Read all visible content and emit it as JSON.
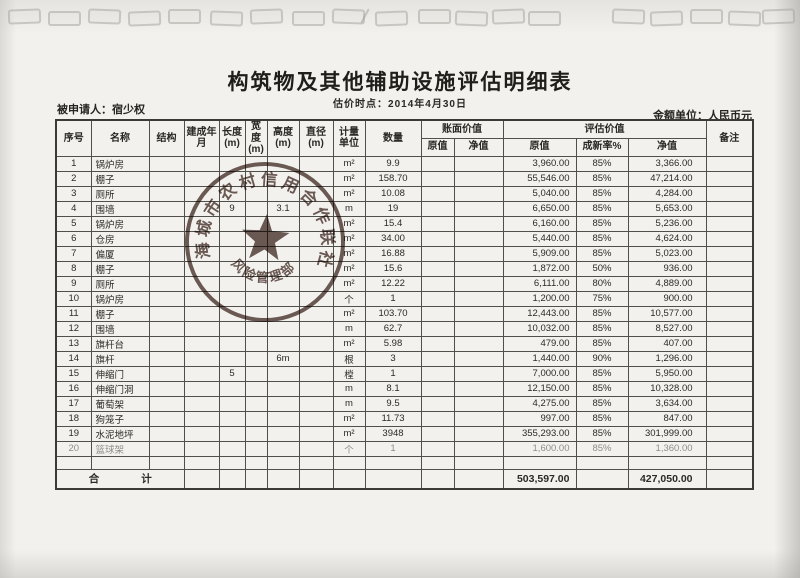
{
  "page": {
    "title": "构筑物及其他辅助设施评估明细表",
    "subtitle": "估价时点：2014年4月30日",
    "applicant": "被申请人：宿少权",
    "unit_note": "金额单位：人民币元"
  },
  "table": {
    "headers": {
      "no": "序号",
      "name": "名称",
      "structure": "结构",
      "built": "建成年月",
      "length": "长度(m)",
      "width": "宽度(m)",
      "height": "高度(m)",
      "diameter": "直径(m)",
      "unit": "计量单位",
      "qty": "数量",
      "book_value": "账面价值",
      "eval_value": "评估价值",
      "book_orig": "原值",
      "book_net": "净值",
      "eval_orig": "原值",
      "eval_rate": "成新率%",
      "eval_net": "净值",
      "remark": "备注"
    },
    "rows": [
      [
        "1",
        "锅炉房",
        "",
        "",
        "",
        "",
        "",
        "",
        "m²",
        "9.9",
        "",
        "",
        "3,960.00",
        "85%",
        "3,366.00",
        ""
      ],
      [
        "2",
        "棚子",
        "",
        "",
        "",
        "",
        "",
        "",
        "m²",
        "158.70",
        "",
        "",
        "55,546.00",
        "85%",
        "47,214.00",
        ""
      ],
      [
        "3",
        "厕所",
        "",
        "",
        "",
        "",
        "",
        "",
        "m²",
        "10.08",
        "",
        "",
        "5,040.00",
        "85%",
        "4,284.00",
        ""
      ],
      [
        "4",
        "围墙",
        "",
        "",
        "9",
        "",
        "3.1",
        "",
        "m",
        "19",
        "",
        "",
        "6,650.00",
        "85%",
        "5,653.00",
        ""
      ],
      [
        "5",
        "锅炉房",
        "",
        "",
        "",
        "",
        "",
        "",
        "m²",
        "15.4",
        "",
        "",
        "6,160.00",
        "85%",
        "5,236.00",
        ""
      ],
      [
        "6",
        "仓房",
        "",
        "",
        "",
        "",
        "",
        "",
        "m²",
        "34.00",
        "",
        "",
        "5,440.00",
        "85%",
        "4,624.00",
        ""
      ],
      [
        "7",
        "偏厦",
        "",
        "",
        "",
        "",
        "",
        "",
        "m²",
        "16.88",
        "",
        "",
        "5,909.00",
        "85%",
        "5,023.00",
        ""
      ],
      [
        "8",
        "棚子",
        "",
        "",
        "",
        "",
        "",
        "",
        "m²",
        "15.6",
        "",
        "",
        "1,872.00",
        "50%",
        "936.00",
        ""
      ],
      [
        "9",
        "厕所",
        "",
        "",
        "",
        "",
        "",
        "",
        "m²",
        "12.22",
        "",
        "",
        "6,111.00",
        "80%",
        "4,889.00",
        ""
      ],
      [
        "10",
        "锅炉房",
        "",
        "",
        "",
        "",
        "",
        "",
        "个",
        "1",
        "",
        "",
        "1,200.00",
        "75%",
        "900.00",
        ""
      ],
      [
        "11",
        "棚子",
        "",
        "",
        "",
        "",
        "",
        "",
        "m²",
        "103.70",
        "",
        "",
        "12,443.00",
        "85%",
        "10,577.00",
        ""
      ],
      [
        "12",
        "围墙",
        "",
        "",
        "",
        "",
        "",
        "",
        "m",
        "62.7",
        "",
        "",
        "10,032.00",
        "85%",
        "8,527.00",
        ""
      ],
      [
        "13",
        "旗杆台",
        "",
        "",
        "",
        "",
        "",
        "",
        "m²",
        "5.98",
        "",
        "",
        "479.00",
        "85%",
        "407.00",
        ""
      ],
      [
        "14",
        "旗杆",
        "",
        "",
        "",
        "",
        "6m",
        "",
        "根",
        "3",
        "",
        "",
        "1,440.00",
        "90%",
        "1,296.00",
        ""
      ],
      [
        "15",
        "伸缩门",
        "",
        "",
        "5",
        "",
        "",
        "",
        "樘",
        "1",
        "",
        "",
        "7,000.00",
        "85%",
        "5,950.00",
        ""
      ],
      [
        "16",
        "伸缩门洞",
        "",
        "",
        "",
        "",
        "",
        "",
        "m",
        "8.1",
        "",
        "",
        "12,150.00",
        "85%",
        "10,328.00",
        ""
      ],
      [
        "17",
        "葡萄架",
        "",
        "",
        "",
        "",
        "",
        "",
        "m",
        "9.5",
        "",
        "",
        "4,275.00",
        "85%",
        "3,634.00",
        ""
      ],
      [
        "18",
        "狗笼子",
        "",
        "",
        "",
        "",
        "",
        "",
        "m²",
        "11.73",
        "",
        "",
        "997.00",
        "85%",
        "847.00",
        ""
      ],
      [
        "19",
        "水泥地坪",
        "",
        "",
        "",
        "",
        "",
        "",
        "m²",
        "3948",
        "",
        "",
        "355,293.00",
        "85%",
        "301,999.00",
        ""
      ],
      [
        "20",
        "篮球架",
        "",
        "",
        "",
        "",
        "",
        "",
        "个",
        "1",
        "",
        "",
        "1,600.00",
        "85%",
        "1,360.00",
        ""
      ]
    ],
    "total": {
      "label": "合　　　　计",
      "eval_orig": "503,597.00",
      "eval_net": "427,050.00"
    }
  },
  "stamp": {
    "ring_text": "海城市农村信用合作联社",
    "inner_text": "风险管理部",
    "color": "#4e3a33"
  }
}
